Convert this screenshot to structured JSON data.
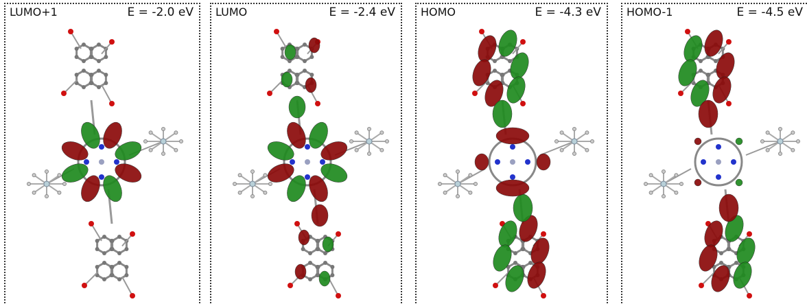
{
  "panels": [
    {
      "label": "LUMO+1",
      "energy": "E = -2.0 eV"
    },
    {
      "label": "LUMO",
      "energy": "E = -2.4 eV"
    },
    {
      "label": "HOMO",
      "energy": "E = -4.3 eV"
    },
    {
      "label": "HOMO-1",
      "energy": "E = -4.5 eV"
    }
  ]
}
